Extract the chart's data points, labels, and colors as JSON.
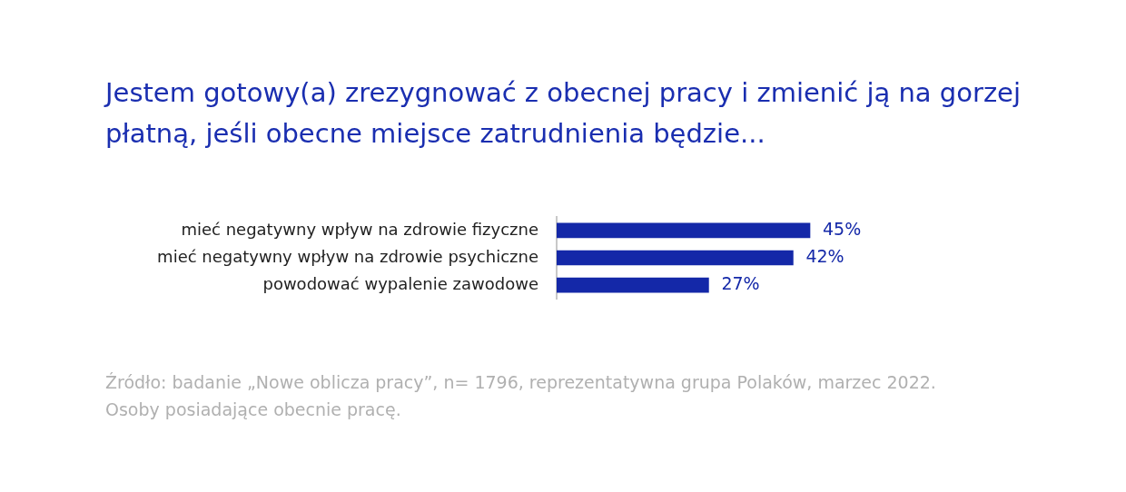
{
  "chart_data": {
    "type": "bar",
    "orientation": "horizontal",
    "title": "Jestem gotowy(a) zrezygnować z obecnej pracy i zmienić ją na gorzej płatną, jeśli obecne miejsce zatrudnienia będzie...",
    "categories": [
      "mieć negatywny wpływ na zdrowie fizyczne",
      "mieć negatywny wpływ na zdrowie psychiczne",
      "powodować wypalenie zawodowe"
    ],
    "values": [
      45,
      42,
      27
    ],
    "color": "#1428a8",
    "value_labels": [
      "45%",
      "42%",
      "27%"
    ],
    "legend": false,
    "tick_labels": "y",
    "annotations": [
      "Źródło: badanie „Nowe oblicza pracy”, n= 1796, reprezentatywna grupa Polaków, marzec 2022.",
      "Osoby posiadające obecnie pracę."
    ]
  }
}
